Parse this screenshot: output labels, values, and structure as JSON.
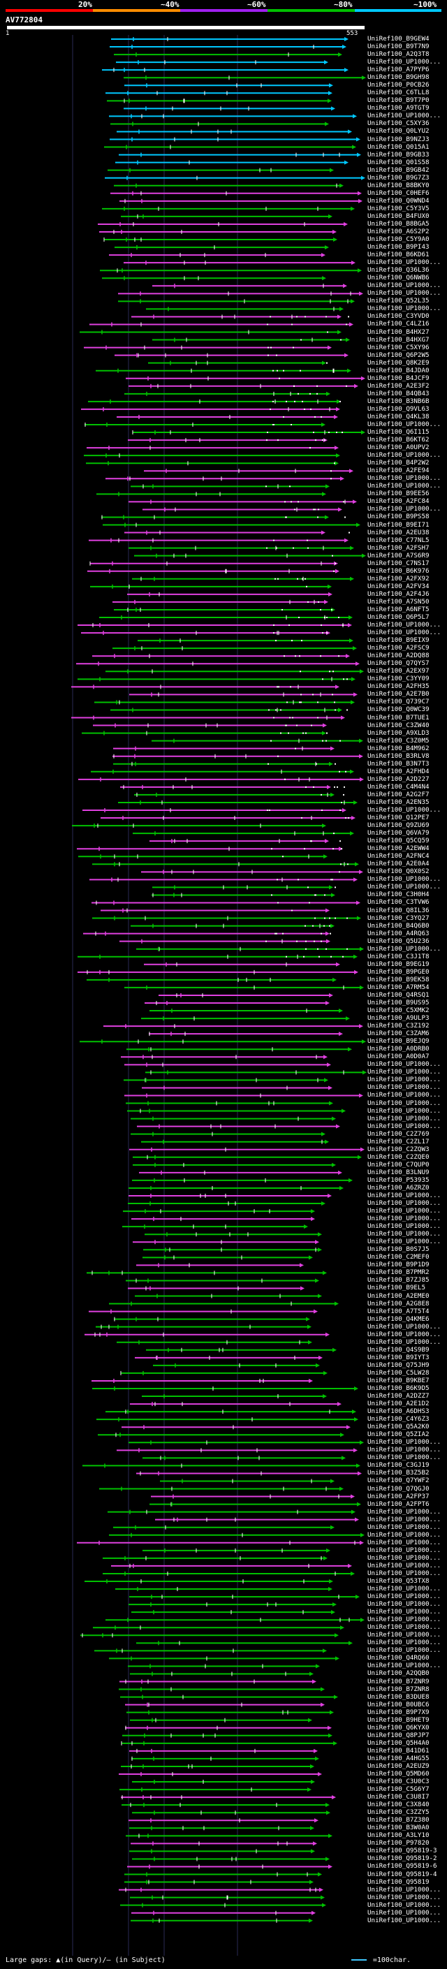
{
  "chart_data": {
    "type": "alignment-overview",
    "query_id": "AV772804",
    "query_start": 1,
    "query_end": 553,
    "scale": {
      "labels": [
        "20%",
        "~40%",
        "~60%",
        "~80%",
        "~100%"
      ],
      "colors": [
        "#ff0000",
        "#ff8c00",
        "#a020f0",
        "#00c000",
        "#00c8ff"
      ]
    },
    "row_colors": {
      "cyan": "#00c8ff",
      "green": "#00c000",
      "magenta": "#e040e0"
    },
    "rows": [
      "UniRef100_B9GEW4",
      "UniRef100_B9T7N9",
      "UniRef100_A2Q3T8",
      "UniRef100_UP1000...",
      "UniRef100_A7PYP6",
      "UniRef100_B9GH98",
      "UniRef100_P0CB26",
      "UniRef100_C6TLL8",
      "UniRef100_B9T7P0",
      "UniRef100_A9TGT9",
      "UniRef100_UP1000...",
      "UniRef100_C5XY36",
      "UniRef100_Q0LYU2",
      "UniRef100_B9NZJ3",
      "UniRef100_Q015A1",
      "UniRef100_B9GB33",
      "UniRef100_Q01S58",
      "UniRef100_B9GB42",
      "UniRef100_B9G7Z3",
      "UniRef100_B8BKY0",
      "UniRef100_C0HEF6",
      "UniRef100_Q0WND4",
      "UniRef100_C5Y3V5",
      "UniRef100_B4FUX0",
      "UniRef100_B8BGA5",
      "UniRef100_A6S2P2",
      "UniRef100_C5Y9A0",
      "UniRef100_B9PI43",
      "UniRef100_B6KD61",
      "UniRef100_UP1000...",
      "UniRef100_Q36L36",
      "UniRef100_Q6NWB6",
      "UniRef100_UP1000...",
      "UniRef100_UP1000...",
      "UniRef100_Q52L35",
      "UniRef100_UP1000...",
      "UniRef100_C3YVD0",
      "UniRef100_C4LZ16",
      "UniRef100_B4HX27",
      "UniRef100_B4HXG7",
      "UniRef100_C5XY96",
      "UniRef100_Q6P2W5",
      "UniRef100_Q8K2E9",
      "UniRef100_B4JDA0",
      "UniRef100_B4JCF9",
      "UniRef100_A2E3F2",
      "UniRef100_B4QB43",
      "UniRef100_B3NB6B",
      "UniRef100_Q9VL63",
      "UniRef100_Q4KL38",
      "UniRef100_UP1000...",
      "UniRef100_Q6I115",
      "UniRef100_B6KT62",
      "UniRef100_A0UPV2",
      "UniRef100_UP1000...",
      "UniRef100_B4P2W2",
      "UniRef100_A2FE94",
      "UniRef100_UP1000...",
      "UniRef100_UP1000...",
      "UniRef100_B9EE56",
      "UniRef100_A2FC84",
      "UniRef100_UP1000...",
      "UniRef100_B9PS58",
      "UniRef100_B9EI71",
      "UniRef100_A2EU38",
      "UniRef100_C77NL5",
      "UniRef100_A2FSH7",
      "UniRef100_A7S6R9",
      "UniRef100_C7NS17",
      "UniRef100_B6K976",
      "UniRef100_A2FX92",
      "UniRef100_A2FV34",
      "UniRef100_A2F4J6",
      "UniRef100_A7SN50",
      "UniRef100_A6NFT5",
      "UniRef100_Q6P5L7",
      "UniRef100_UP1000...",
      "UniRef100_UP1000...",
      "UniRef100_B9EIX9",
      "UniRef100_A2FSC9",
      "UniRef100_A2DQ88",
      "UniRef100_Q7QYS7",
      "UniRef100_A2EX97",
      "UniRef100_C3YY09",
      "UniRef100_A2FH35",
      "UniRef100_A2E7B0",
      "UniRef100_Q739C7",
      "UniRef100_Q0WC39",
      "UniRef100_B7TUE1",
      "UniRef100_C3ZW40",
      "UniRef100_A9XLD3",
      "UniRef100_C3Z0M5",
      "UniRef100_B4M962",
      "UniRef100_B3RLV8",
      "UniRef100_B3N7T3",
      "UniRef100_A2FHD4",
      "UniRef100_A2D227",
      "UniRef100_C4M4N4",
      "UniRef100_A2G2F7",
      "UniRef100_A2EN35",
      "UniRef100_UP1000...",
      "UniRef100_Q12PE7",
      "UniRef100_Q9ZU69",
      "UniRef100_Q6VA79",
      "UniRef100_Q5CQ59",
      "UniRef100_A2EWW4",
      "UniRef100_A2FNC4",
      "UniRef100_A2E0A4",
      "UniRef100_Q0X0S2",
      "UniRef100_UP1000...",
      "UniRef100_UP1000...",
      "UniRef100_C3H0H4",
      "UniRef100_C3TVW6",
      "UniRef100_Q8IL36",
      "UniRef100_C3YQ27",
      "UniRef100_B4Q6B0",
      "UniRef100_A4RQ63",
      "UniRef100_Q5U236",
      "UniRef100_UP1000...",
      "UniRef100_C3J1T8",
      "UniRef100_B9EG19",
      "UniRef100_B9PGE0",
      "UniRef100_B9EK58",
      "UniRef100_A7RM54",
      "UniRef100_Q4RSQ1",
      "UniRef100_B9US95",
      "UniRef100_C5XMK2",
      "UniRef100_A9ULP3",
      "UniRef100_C3Z192",
      "UniRef100_C3ZAM6",
      "UniRef100_B9EJQ9",
      "UniRef100_A0DRB0",
      "UniRef100_A0D0A7",
      "UniRef100_UP1000...",
      "UniRef100_UP1000...",
      "UniRef100_UP1000...",
      "UniRef100_UP1000...",
      "UniRef100_UP1000...",
      "UniRef100_UP1000...",
      "UniRef100_UP1000...",
      "UniRef100_UP1000...",
      "UniRef100_UP1000...",
      "UniRef100_C2Z769",
      "UniRef100_C2ZL17",
      "UniRef100_C2ZQW3",
      "UniRef100_C2ZQE0",
      "UniRef100_C7QUP0",
      "UniRef100_B3LNU9",
      "UniRef100_P53935",
      "UniRef100_A6ZRZ0",
      "UniRef100_UP1000...",
      "UniRef100_UP1000...",
      "UniRef100_UP1000...",
      "UniRef100_UP1000...",
      "UniRef100_UP1000...",
      "UniRef100_UP1000...",
      "UniRef100_UP1000...",
      "UniRef100_B0S7J5",
      "UniRef100_C2MEF0",
      "UniRef100_B9P1D9",
      "UniRef100_B7PMR2",
      "UniRef100_B7ZJ85",
      "UniRef100_B9EL5",
      "UniRef100_A2EME0",
      "UniRef100_A2G8E8",
      "UniRef100_A7T5T4",
      "UniRef100_Q4KME6",
      "UniRef100_UP1000...",
      "UniRef100_UP1000...",
      "UniRef100_UP1000...",
      "UniRef100_Q4S9B9",
      "UniRef100_B9IYT3",
      "UniRef100_Q75JH9",
      "UniRef100_C5LW28",
      "UniRef100_B9KBE7",
      "UniRef100_B6K9D5",
      "UniRef100_A2DZZ7",
      "UniRef100_A2E1D2",
      "UniRef100_A6DHS3",
      "UniRef100_C4Y6Z3",
      "UniRef100_Q5A2K0",
      "UniRef100_Q5ZIA2",
      "UniRef100_UP1000...",
      "UniRef100_UP1000...",
      "UniRef100_UP1000...",
      "UniRef100_C3GJ19",
      "UniRef100_B3Z5B2",
      "UniRef100_Q7YWF2",
      "UniRef100_Q7QGJ0",
      "UniRef100_A2FP37",
      "UniRef100_A2FPT6",
      "UniRef100_UP1000...",
      "UniRef100_UP1000...",
      "UniRef100_UP1000...",
      "UniRef100_UP1000...",
      "UniRef100_UP1000...",
      "UniRef100_UP1000...",
      "UniRef100_UP1000...",
      "UniRef100_UP1000...",
      "UniRef100_UP1000...",
      "UniRef100_Q53TX8",
      "UniRef100_UP1000...",
      "UniRef100_UP1000...",
      "UniRef100_UP1000...",
      "UniRef100_UP1000...",
      "UniRef100_UP1000...",
      "UniRef100_UP1000...",
      "UniRef100_UP1000...",
      "UniRef100_UP1000...",
      "UniRef100_UP1000...",
      "UniRef100_Q4RQ60",
      "UniRef100_UP1000...",
      "UniRef100_A2QQB0",
      "UniRef100_B7ZNR9",
      "UniRef100_B7ZNR8",
      "UniRef100_B3DUE8",
      "UniRef100_B0UBC6",
      "UniRef100_B9P7X9",
      "UniRef100_B9HET9",
      "UniRef100_Q6KYX0",
      "UniRef100_Q8PJP7",
      "UniRef100_Q5H4A0",
      "UniRef100_B41D61",
      "UniRef100_A4HG55",
      "UniRef100_A2EUZ9",
      "UniRef100_Q5MD60",
      "UniRef100_C3U0C3",
      "UniRef100_C5G6Y7",
      "UniRef100_C3U8I7",
      "UniRef100_C3X840",
      "UniRef100_C3ZZY5",
      "UniRef100_B7Z380",
      "UniRef100_B3W0A0",
      "UniRef100_A3LY10",
      "UniRef100_P97820",
      "UniRef100_Q95819-3",
      "UniRef100_Q95819-2",
      "UniRef100_Q95819-6",
      "UniRef100_Q95819-4",
      "UniRef100_Q95819",
      "UniRef100_UP1000...",
      "UniRef100_UP1000...",
      "UniRef100_UP1000...",
      "UniRef100_UP1000...",
      "UniRef100_UP1000..."
    ]
  },
  "footer": {
    "text": "Large gaps: ▲(in Query)/– (in Subject)",
    "legend": "=100char."
  }
}
